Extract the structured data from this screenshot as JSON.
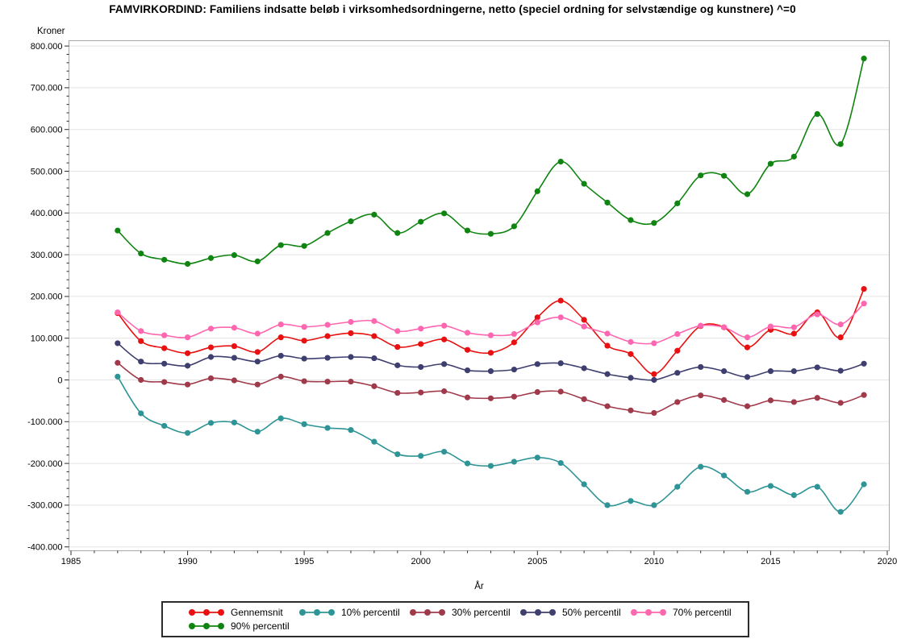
{
  "title": "FAMVIRKORDIND: Familiens indsatte beløb i virksomhedsordningerne, netto (speciel ordning for selvstændige og kunstnere) ^=0",
  "chart_data": {
    "type": "line",
    "title": "FAMVIRKORDIND: Familiens indsatte beløb i virksomhedsordningerne, netto (speciel ordning for selvstændige og kunstnere) ^=0",
    "xlabel": "År",
    "ylabel": "Kroner",
    "xlim": [
      1985,
      2020
    ],
    "ylim": [
      -400000,
      800000
    ],
    "grid": "horizontal",
    "legend_position": "bottom",
    "x_ticks": [
      {
        "value": 1985,
        "label": "1985"
      },
      {
        "value": 1990,
        "label": "1990"
      },
      {
        "value": 1995,
        "label": "1995"
      },
      {
        "value": 2000,
        "label": "2000"
      },
      {
        "value": 2005,
        "label": "2005"
      },
      {
        "value": 2010,
        "label": "2010"
      },
      {
        "value": 2015,
        "label": "2015"
      },
      {
        "value": 2020,
        "label": "2020"
      }
    ],
    "x_minor_step": 1,
    "y_ticks": [
      {
        "value": 800000,
        "label": "800.000"
      },
      {
        "value": 700000,
        "label": "700.000"
      },
      {
        "value": 600000,
        "label": "600.000"
      },
      {
        "value": 500000,
        "label": "500.000"
      },
      {
        "value": 400000,
        "label": "400.000"
      },
      {
        "value": 300000,
        "label": "300.000"
      },
      {
        "value": 200000,
        "label": "200.000"
      },
      {
        "value": 100000,
        "label": "100.000"
      },
      {
        "value": 0,
        "label": "0"
      },
      {
        "value": -100000,
        "label": "-100.000"
      },
      {
        "value": -200000,
        "label": "-200.000"
      },
      {
        "value": -300000,
        "label": "-300.000"
      },
      {
        "value": -400000,
        "label": "-400.000"
      }
    ],
    "y_minor_step": 20000,
    "x": [
      1987,
      1988,
      1989,
      1990,
      1991,
      1992,
      1993,
      1994,
      1995,
      1996,
      1997,
      1998,
      1999,
      2000,
      2001,
      2002,
      2003,
      2004,
      2005,
      2006,
      2007,
      2008,
      2009,
      2010,
      2011,
      2012,
      2013,
      2014,
      2015,
      2016,
      2017,
      2018,
      2019
    ],
    "series": [
      {
        "name": "Gennemsnit",
        "color": "#e81010",
        "values": [
          160000,
          93000,
          76000,
          64000,
          78000,
          81000,
          67000,
          102000,
          94000,
          105000,
          112000,
          105000,
          79000,
          86000,
          97000,
          72000,
          65000,
          90000,
          150000,
          190000,
          144000,
          82000,
          62000,
          14000,
          70000,
          129000,
          126000,
          78000,
          120000,
          111000,
          162000,
          102000,
          218000
        ]
      },
      {
        "name": "10% percentil",
        "color": "#2e9495",
        "values": [
          8000,
          -80000,
          -110000,
          -127000,
          -103000,
          -102000,
          -124000,
          -92000,
          -106000,
          -115000,
          -120000,
          -148000,
          -178000,
          -182000,
          -172000,
          -200000,
          -206000,
          -196000,
          -186000,
          -199000,
          -250000,
          -300000,
          -290000,
          -300000,
          -256000,
          -208000,
          -229000,
          -268000,
          -254000,
          -276000,
          -256000,
          -316000,
          -250000
        ]
      },
      {
        "name": "30% percentil",
        "color": "#a03a4a",
        "values": [
          41000,
          0,
          -5000,
          -11000,
          4000,
          -1000,
          -11000,
          8000,
          -3000,
          -4000,
          -4000,
          -15000,
          -31000,
          -30000,
          -27000,
          -42000,
          -44000,
          -40000,
          -29000,
          -28000,
          -46000,
          -63000,
          -73000,
          -79000,
          -53000,
          -37000,
          -48000,
          -63000,
          -49000,
          -53000,
          -43000,
          -55000,
          -36000
        ]
      },
      {
        "name": "50% percentil",
        "color": "#3e3e6f",
        "values": [
          88000,
          44000,
          39000,
          34000,
          55000,
          53000,
          44000,
          58000,
          51000,
          53000,
          55000,
          52000,
          35000,
          31000,
          38000,
          23000,
          21000,
          25000,
          38000,
          40000,
          28000,
          14000,
          5000,
          0,
          17000,
          31000,
          21000,
          7000,
          21000,
          21000,
          30000,
          22000,
          39000
        ]
      },
      {
        "name": "70% percentil",
        "color": "#ff66b0",
        "values": [
          162000,
          117000,
          107000,
          102000,
          123000,
          125000,
          111000,
          133000,
          127000,
          132000,
          139000,
          141000,
          117000,
          123000,
          130000,
          113000,
          107000,
          110000,
          138000,
          150000,
          128000,
          111000,
          91000,
          88000,
          110000,
          130000,
          126000,
          102000,
          128000,
          126000,
          157000,
          133000,
          183000
        ]
      },
      {
        "name": "90% percentil",
        "color": "#0f8410",
        "values": [
          358000,
          303000,
          288000,
          278000,
          292000,
          299000,
          284000,
          323000,
          321000,
          352000,
          380000,
          396000,
          352000,
          379000,
          399000,
          358000,
          350000,
          368000,
          452000,
          523000,
          470000,
          425000,
          383000,
          376000,
          423000,
          490000,
          489000,
          445000,
          518000,
          535000,
          637000,
          565000,
          770000
        ]
      }
    ],
    "colors": {
      "grid": "#e4e4e4",
      "frame": "#a8a8a8",
      "tick": "#2b2b2b",
      "text": "#000000",
      "background": "#ffffff"
    }
  },
  "legend": {
    "items": [
      {
        "label": "Gennemsnit"
      },
      {
        "label": "10% percentil"
      },
      {
        "label": "30% percentil"
      },
      {
        "label": "50% percentil"
      },
      {
        "label": "70% percentil"
      },
      {
        "label": "90% percentil"
      }
    ]
  }
}
